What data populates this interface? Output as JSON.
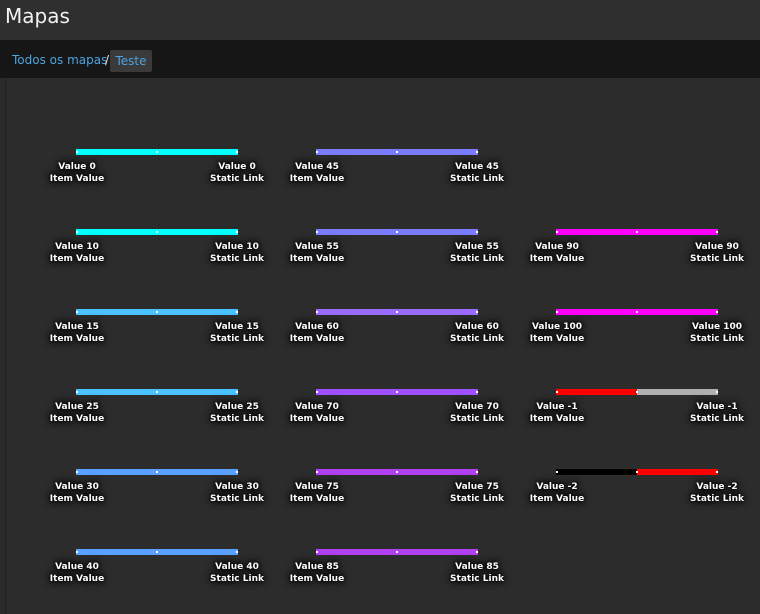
{
  "header": {
    "title": "Mapas"
  },
  "breadcrumb": {
    "parent": "Todos os mapas",
    "separator": "/",
    "current": "Teste"
  },
  "map_links": [
    {
      "id": "link-value-0",
      "left_value": "Value 0",
      "left_caption": "Item Value",
      "right_value": "Value 0",
      "right_caption": "Static Link",
      "color_a": "#00ffff",
      "color_b": "#00ffff"
    },
    {
      "id": "link-value-10",
      "left_value": "Value 10",
      "left_caption": "Item Value",
      "right_value": "Value 10",
      "right_caption": "Static Link",
      "color_a": "#00ffff",
      "color_b": "#00ffff"
    },
    {
      "id": "link-value-15",
      "left_value": "Value 15",
      "left_caption": "Item Value",
      "right_value": "Value 15",
      "right_caption": "Static Link",
      "color_a": "#49c2ff",
      "color_b": "#49c2ff"
    },
    {
      "id": "link-value-25",
      "left_value": "Value 25",
      "left_caption": "Item Value",
      "right_value": "Value 25",
      "right_caption": "Static Link",
      "color_a": "#49c2ff",
      "color_b": "#49c2ff"
    },
    {
      "id": "link-value-30",
      "left_value": "Value 30",
      "left_caption": "Item Value",
      "right_value": "Value 30",
      "right_caption": "Static Link",
      "color_a": "#5aa0ff",
      "color_b": "#5aa0ff"
    },
    {
      "id": "link-value-40",
      "left_value": "Value 40",
      "left_caption": "Item Value",
      "right_value": "Value 40",
      "right_caption": "Static Link",
      "color_a": "#5aa0ff",
      "color_b": "#5aa0ff"
    },
    {
      "id": "link-value-45",
      "left_value": "Value 45",
      "left_caption": "Item Value",
      "right_value": "Value 45",
      "right_caption": "Static Link",
      "color_a": "#7b7bff",
      "color_b": "#7b7bff"
    },
    {
      "id": "link-value-55",
      "left_value": "Value 55",
      "left_caption": "Item Value",
      "right_value": "Value 55",
      "right_caption": "Static Link",
      "color_a": "#7b7bff",
      "color_b": "#7b7bff"
    },
    {
      "id": "link-value-60",
      "left_value": "Value 60",
      "left_caption": "Item Value",
      "right_value": "Value 60",
      "right_caption": "Static Link",
      "color_a": "#9a6bff",
      "color_b": "#9a6bff"
    },
    {
      "id": "link-value-70",
      "left_value": "Value 70",
      "left_caption": "Item Value",
      "right_value": "Value 70",
      "right_caption": "Static Link",
      "color_a": "#a050ff",
      "color_b": "#a050ff"
    },
    {
      "id": "link-value-75",
      "left_value": "Value 75",
      "left_caption": "Item Value",
      "right_value": "Value 75",
      "right_caption": "Static Link",
      "color_a": "#b040f0",
      "color_b": "#b040f0"
    },
    {
      "id": "link-value-85",
      "left_value": "Value 85",
      "left_caption": "Item Value",
      "right_value": "Value 85",
      "right_caption": "Static Link",
      "color_a": "#b040f0",
      "color_b": "#b040f0"
    },
    {
      "id": "link-value-90",
      "left_value": "Value 90",
      "left_caption": "Item Value",
      "right_value": "Value 90",
      "right_caption": "Static Link",
      "color_a": "#ff00ff",
      "color_b": "#ff00ff"
    },
    {
      "id": "link-value-100",
      "left_value": "Value 100",
      "left_caption": "Item Value",
      "right_value": "Value 100",
      "right_caption": "Static Link",
      "color_a": "#ff00ff",
      "color_b": "#ff00ff"
    },
    {
      "id": "link-value-neg1",
      "left_value": "Value -1",
      "left_caption": "Item Value",
      "right_value": "Value -1",
      "right_caption": "Static Link",
      "color_a": "#ff0000",
      "color_b": "#b0b0b0"
    },
    {
      "id": "link-value-neg2",
      "left_value": "Value -2",
      "left_caption": "Item Value",
      "right_value": "Value -2",
      "right_caption": "Static Link",
      "color_a": "#000000",
      "color_b": "#ff0000"
    }
  ]
}
